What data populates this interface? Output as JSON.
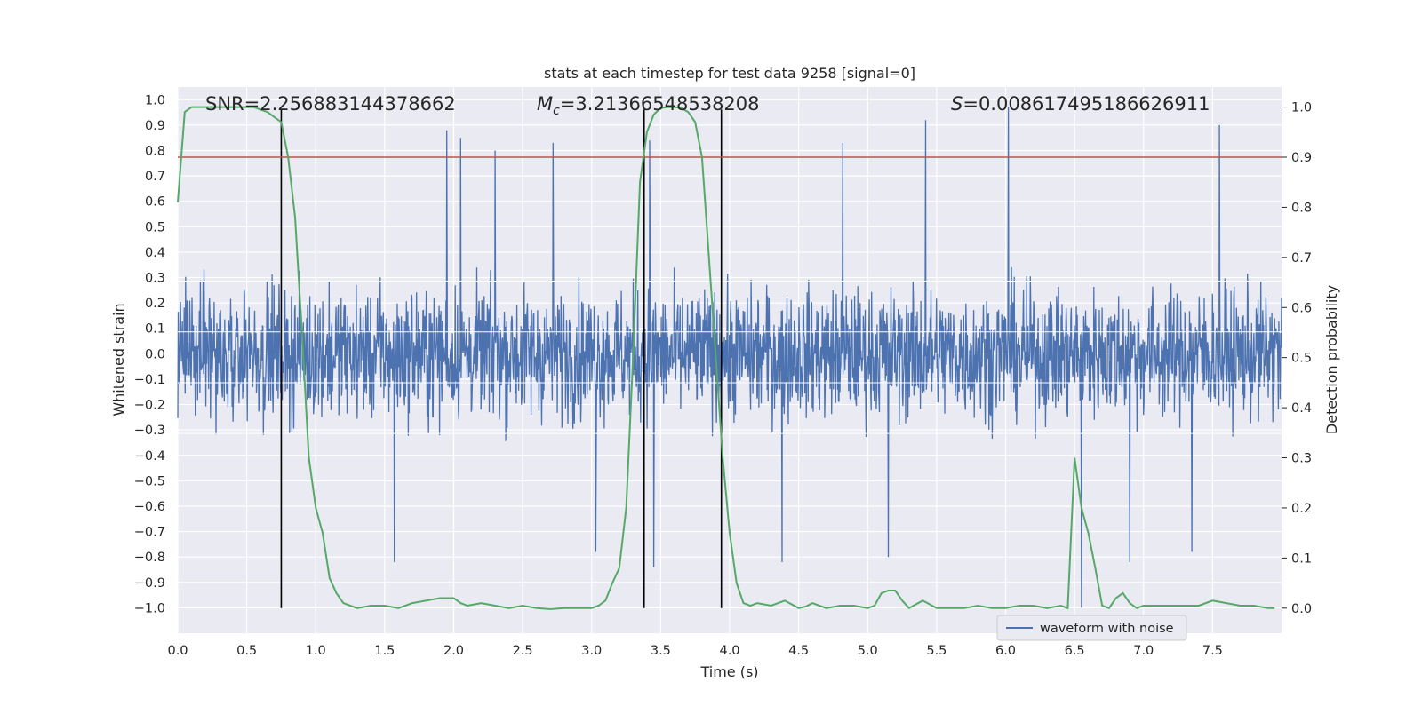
{
  "chart_data": {
    "type": "line",
    "title": "stats at each timestep for test data 9258 [signal=0]",
    "xlabel": "Time (s)",
    "ylabel_left": "Whitened strain",
    "ylabel_right": "Detection probability",
    "xlim": [
      0.0,
      8.0
    ],
    "ylim_left": [
      -1.1,
      1.05
    ],
    "ylim_right": [
      -0.05,
      1.04
    ],
    "x_ticks": [
      "0.0",
      "0.5",
      "1.0",
      "1.5",
      "2.0",
      "2.5",
      "3.0",
      "3.5",
      "4.0",
      "4.5",
      "5.0",
      "5.5",
      "6.0",
      "6.5",
      "7.0",
      "7.5"
    ],
    "y_ticks_left": [
      "1.0",
      "0.9",
      "0.8",
      "0.7",
      "0.6",
      "0.5",
      "0.4",
      "0.3",
      "0.2",
      "0.1",
      "0.0",
      "−0.1",
      "−0.2",
      "−0.3",
      "−0.4",
      "−0.5",
      "−0.6",
      "−0.7",
      "−0.8",
      "−0.9",
      "−1.0"
    ],
    "y_ticks_right": [
      "1.0",
      "0.9",
      "0.8",
      "0.7",
      "0.6",
      "0.5",
      "0.4",
      "0.3",
      "0.2",
      "0.1",
      "0.0"
    ],
    "annotations": {
      "snr": "SNR=2.256883144378662",
      "mc_symbol": "M",
      "mc_sub": "c",
      "mc_value": "=3.213665485382​08",
      "s_symbol": "S",
      "s_value": "=0.008617495186626911"
    },
    "threshold": {
      "right_axis_value": 0.9,
      "color": "#c44e52"
    },
    "vertical_markers": [
      0.75,
      3.38,
      3.94
    ],
    "legend": {
      "label": "waveform with noise",
      "position": "lower-right"
    },
    "series": [
      {
        "name": "waveform with noise",
        "axis": "left",
        "color": "#4c72b0",
        "kind": "noise",
        "typical_band": [
          -0.45,
          0.45
        ],
        "peak_spikes": [
          {
            "x": 1.95,
            "y": 0.88
          },
          {
            "x": 2.05,
            "y": 0.85
          },
          {
            "x": 2.3,
            "y": 0.8
          },
          {
            "x": 2.72,
            "y": 0.83
          },
          {
            "x": 3.42,
            "y": 0.84
          },
          {
            "x": 4.82,
            "y": 0.83
          },
          {
            "x": 5.42,
            "y": 0.92
          },
          {
            "x": 6.02,
            "y": 0.97
          },
          {
            "x": 7.55,
            "y": 0.9
          },
          {
            "x": 1.57,
            "y": -0.82
          },
          {
            "x": 3.03,
            "y": -0.78
          },
          {
            "x": 3.45,
            "y": -0.84
          },
          {
            "x": 4.38,
            "y": -0.82
          },
          {
            "x": 5.15,
            "y": -0.8
          },
          {
            "x": 6.55,
            "y": -1.0
          },
          {
            "x": 7.35,
            "y": -0.78
          },
          {
            "x": 6.9,
            "y": -0.82
          }
        ]
      },
      {
        "name": "detection probability",
        "axis": "right",
        "color": "#55a868",
        "x": [
          0.0,
          0.05,
          0.1,
          0.2,
          0.3,
          0.4,
          0.5,
          0.55,
          0.6,
          0.65,
          0.7,
          0.75,
          0.8,
          0.85,
          0.9,
          0.95,
          1.0,
          1.05,
          1.1,
          1.15,
          1.2,
          1.3,
          1.4,
          1.5,
          1.6,
          1.7,
          1.8,
          1.9,
          2.0,
          2.05,
          2.1,
          2.2,
          2.3,
          2.4,
          2.5,
          2.6,
          2.7,
          2.8,
          2.9,
          3.0,
          3.05,
          3.1,
          3.15,
          3.2,
          3.25,
          3.3,
          3.35,
          3.4,
          3.45,
          3.5,
          3.55,
          3.6,
          3.65,
          3.7,
          3.75,
          3.8,
          3.85,
          3.9,
          3.95,
          4.0,
          4.05,
          4.1,
          4.15,
          4.2,
          4.3,
          4.4,
          4.5,
          4.55,
          4.6,
          4.7,
          4.8,
          4.9,
          5.0,
          5.05,
          5.1,
          5.15,
          5.2,
          5.25,
          5.3,
          5.4,
          5.5,
          5.6,
          5.7,
          5.8,
          5.9,
          6.0,
          6.1,
          6.2,
          6.3,
          6.4,
          6.45,
          6.5,
          6.55,
          6.6,
          6.65,
          6.7,
          6.75,
          6.8,
          6.85,
          6.9,
          6.95,
          7.0,
          7.1,
          7.2,
          7.3,
          7.4,
          7.5,
          7.6,
          7.7,
          7.8,
          7.9,
          7.95
        ],
        "values": [
          0.81,
          0.99,
          1.0,
          1.0,
          1.0,
          1.0,
          1.0,
          1.0,
          0.995,
          0.99,
          0.98,
          0.97,
          0.9,
          0.78,
          0.55,
          0.3,
          0.2,
          0.15,
          0.06,
          0.03,
          0.01,
          0.0,
          0.005,
          0.005,
          0.0,
          0.01,
          0.015,
          0.02,
          0.02,
          0.01,
          0.005,
          0.01,
          0.005,
          0.0,
          0.005,
          0.0,
          -0.002,
          0.0,
          0.0,
          0.0,
          0.005,
          0.015,
          0.05,
          0.08,
          0.2,
          0.5,
          0.85,
          0.95,
          0.985,
          0.998,
          1.0,
          1.0,
          0.998,
          0.99,
          0.97,
          0.9,
          0.7,
          0.5,
          0.3,
          0.15,
          0.05,
          0.01,
          0.005,
          0.01,
          0.005,
          0.015,
          0.0,
          0.003,
          0.01,
          0.0,
          0.005,
          0.005,
          0.0,
          0.005,
          0.03,
          0.035,
          0.035,
          0.015,
          0.0,
          0.015,
          0.0,
          0.0,
          0.0,
          0.005,
          0.0,
          0.0,
          0.005,
          0.005,
          0.0,
          0.005,
          0.0,
          0.3,
          0.2,
          0.15,
          0.08,
          0.005,
          0.0,
          0.02,
          0.03,
          0.01,
          0.0,
          0.005,
          0.005,
          0.005,
          0.005,
          0.005,
          0.015,
          0.01,
          0.005,
          0.005,
          0.0,
          0.0
        ]
      }
    ]
  }
}
